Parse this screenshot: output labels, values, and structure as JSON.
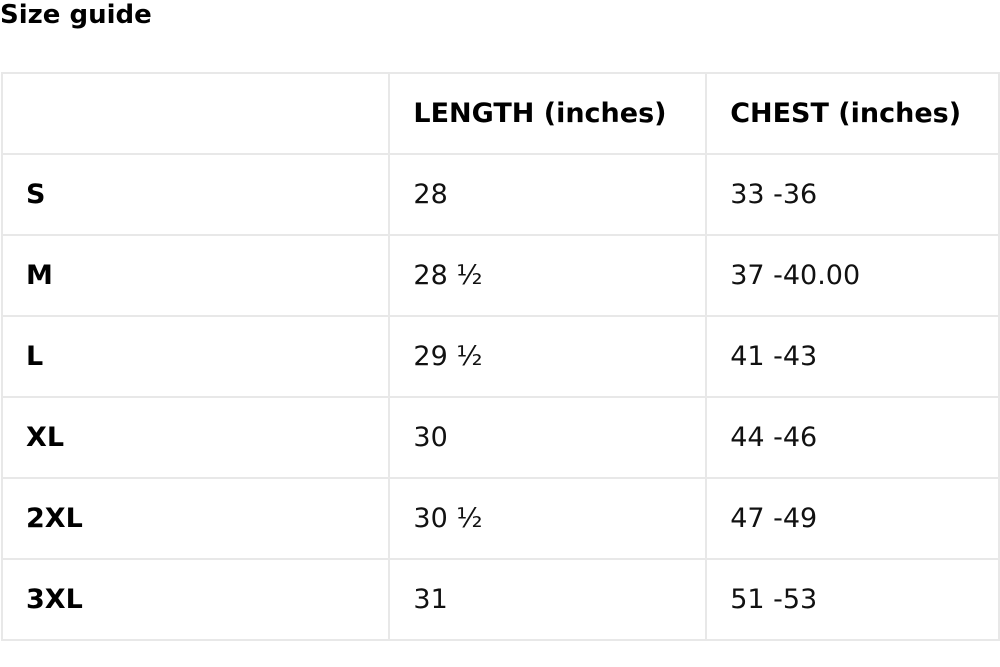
{
  "title": "Size guide",
  "table": {
    "headers": [
      "",
      "LENGTH (inches)",
      "CHEST (inches)"
    ],
    "rows": [
      [
        "S",
        "28",
        "33 -36"
      ],
      [
        "M",
        "28 ½",
        "37 -40.00"
      ],
      [
        "L",
        "29 ½",
        "41 -43"
      ],
      [
        "XL",
        "30",
        "44 -46"
      ],
      [
        "2XL",
        "30 ½",
        "47 -49"
      ],
      [
        "3XL",
        "31",
        "51 -53"
      ]
    ]
  }
}
